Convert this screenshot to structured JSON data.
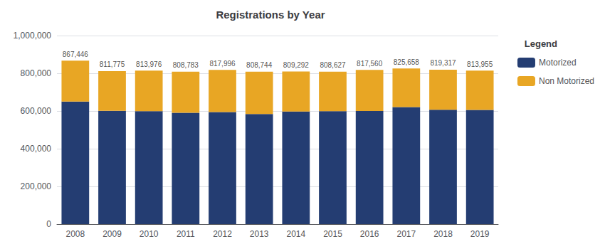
{
  "chart_data": {
    "type": "bar",
    "title": "Registrations by Year",
    "stacked": true,
    "categories": [
      "2008",
      "2009",
      "2010",
      "2011",
      "2012",
      "2013",
      "2014",
      "2015",
      "2016",
      "2017",
      "2018",
      "2019"
    ],
    "series": [
      {
        "name": "Motorized",
        "color": "#243d72",
        "values": [
          650000,
          601000,
          599000,
          591000,
          594000,
          584000,
          597000,
          599000,
          600000,
          621000,
          607000,
          606000
        ]
      },
      {
        "name": "Non Motorized",
        "color": "#e8a624",
        "values": [
          217446,
          210775,
          214976,
          217783,
          223996,
          224744,
          212292,
          209627,
          217560,
          204658,
          212317,
          207955
        ]
      }
    ],
    "annotations": [
      {
        "x": "2008",
        "y": 867446,
        "text": "867,446"
      },
      {
        "x": "2009",
        "y": 811775,
        "text": "811,775"
      },
      {
        "x": "2010",
        "y": 813976,
        "text": "813,976"
      },
      {
        "x": "2011",
        "y": 808783,
        "text": "808,783"
      },
      {
        "x": "2012",
        "y": 817996,
        "text": "817,996"
      },
      {
        "x": "2013",
        "y": 808744,
        "text": "808,744"
      },
      {
        "x": "2014",
        "y": 809292,
        "text": "809,292"
      },
      {
        "x": "2015",
        "y": 808627,
        "text": "808,627"
      },
      {
        "x": "2016",
        "y": 817560,
        "text": "817,560"
      },
      {
        "x": "2017",
        "y": 825658,
        "text": "825,658"
      },
      {
        "x": "2018",
        "y": 819317,
        "text": "819,317"
      },
      {
        "x": "2019",
        "y": 813955,
        "text": "813,955"
      }
    ],
    "ylim": [
      0,
      1000000
    ],
    "yticks": [
      0,
      {
        "value": 200000,
        "label": "200,000"
      },
      {
        "value": 400000,
        "label": "400,000"
      },
      {
        "value": 600000,
        "label": "600,000"
      },
      {
        "value": 800000,
        "label": "800,000"
      },
      {
        "value": 1000000,
        "label": "1,000,000"
      }
    ],
    "grid": true,
    "legend": "upper right",
    "legend_title": "Legend"
  }
}
